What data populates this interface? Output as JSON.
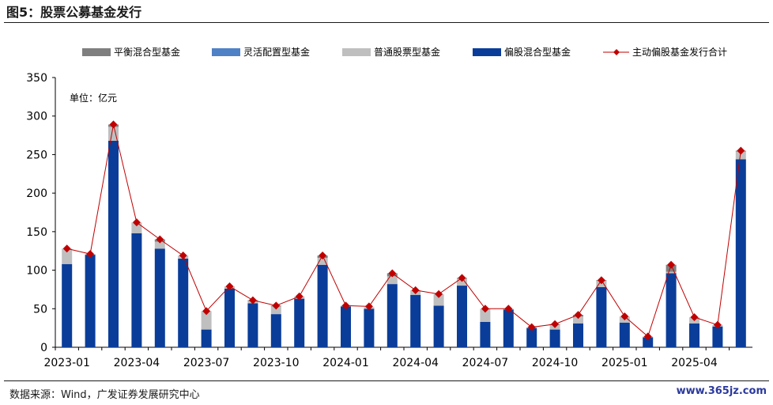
{
  "header": {
    "title": "图5：股票公募基金发行"
  },
  "footer": {
    "source": "数据来源：Wind，广发证券发展研究中心",
    "watermark": "www.365jz.com"
  },
  "colors": {
    "balanced": "#7f7f7f",
    "flexible": "#4f81c6",
    "stock": "#bfbfbf",
    "equity_mix": "#0a3d99",
    "total": "#c00000"
  },
  "chart_data": {
    "type": "bar",
    "stacked": true,
    "unit_label": "单位：亿元",
    "ylim": [
      0,
      350
    ],
    "yticks": [
      0,
      50,
      100,
      150,
      200,
      250,
      300,
      350
    ],
    "categories": [
      "2023-01",
      "2023-02",
      "2023-03",
      "2023-04",
      "2023-05",
      "2023-06",
      "2023-07",
      "2023-08",
      "2023-09",
      "2023-10",
      "2023-11",
      "2023-12",
      "2024-01",
      "2024-02",
      "2024-03",
      "2024-04",
      "2024-05",
      "2024-06",
      "2024-07",
      "2024-08",
      "2024-09",
      "2024-10",
      "2024-11",
      "2024-12",
      "2025-01",
      "2025-02",
      "2025-03",
      "2025-04",
      "2025-05",
      "2025-06"
    ],
    "xtick_labels": [
      "2023-01",
      "2023-04",
      "2023-07",
      "2023-10",
      "2024-01",
      "2024-04",
      "2024-07",
      "2024-10",
      "2025-01",
      "2025-04"
    ],
    "series": [
      {
        "name": "偏股混合型基金",
        "color_key": "equity_mix",
        "values": [
          108,
          120,
          268,
          148,
          128,
          115,
          23,
          76,
          57,
          43,
          63,
          107,
          53,
          50,
          82,
          68,
          54,
          80,
          33,
          49,
          25,
          23,
          31,
          78,
          32,
          13,
          96,
          31,
          27,
          244
        ]
      },
      {
        "name": "普通股票型基金",
        "color_key": "stock",
        "values": [
          20,
          1,
          18,
          14,
          9,
          4,
          24,
          3,
          3,
          10,
          3,
          9,
          1,
          2,
          10,
          6,
          15,
          9,
          17,
          1,
          1,
          6,
          9,
          8,
          8,
          1,
          2,
          8,
          2,
          10
        ]
      },
      {
        "name": "灵活配置型基金",
        "color_key": "flexible",
        "values": [
          0,
          0,
          0,
          0,
          0,
          0,
          0,
          0,
          0,
          0,
          0,
          0,
          0,
          0,
          0,
          0,
          0,
          0,
          0,
          0,
          0,
          0,
          0,
          0,
          0,
          0,
          0,
          0,
          0,
          0
        ]
      },
      {
        "name": "平衡混合型基金",
        "color_key": "balanced",
        "values": [
          0,
          0,
          3,
          0,
          3,
          0,
          0,
          0,
          1,
          1,
          0,
          3,
          0,
          0,
          4,
          0,
          0,
          1,
          0,
          0,
          0,
          1,
          2,
          1,
          0,
          0,
          9,
          0,
          0,
          1
        ]
      }
    ],
    "line_series": {
      "name": "主动偏股基金发行合计",
      "color_key": "total",
      "values": [
        128,
        121,
        289,
        162,
        140,
        119,
        47,
        79,
        61,
        54,
        66,
        119,
        54,
        53,
        96,
        74,
        69,
        90,
        50,
        50,
        26,
        30,
        42,
        87,
        40,
        14,
        107,
        39,
        29,
        255
      ]
    },
    "legend": [
      "平衡混合型基金",
      "灵活配置型基金",
      "普通股票型基金",
      "偏股混合型基金",
      "主动偏股基金发行合计"
    ],
    "legend_position": "top"
  }
}
